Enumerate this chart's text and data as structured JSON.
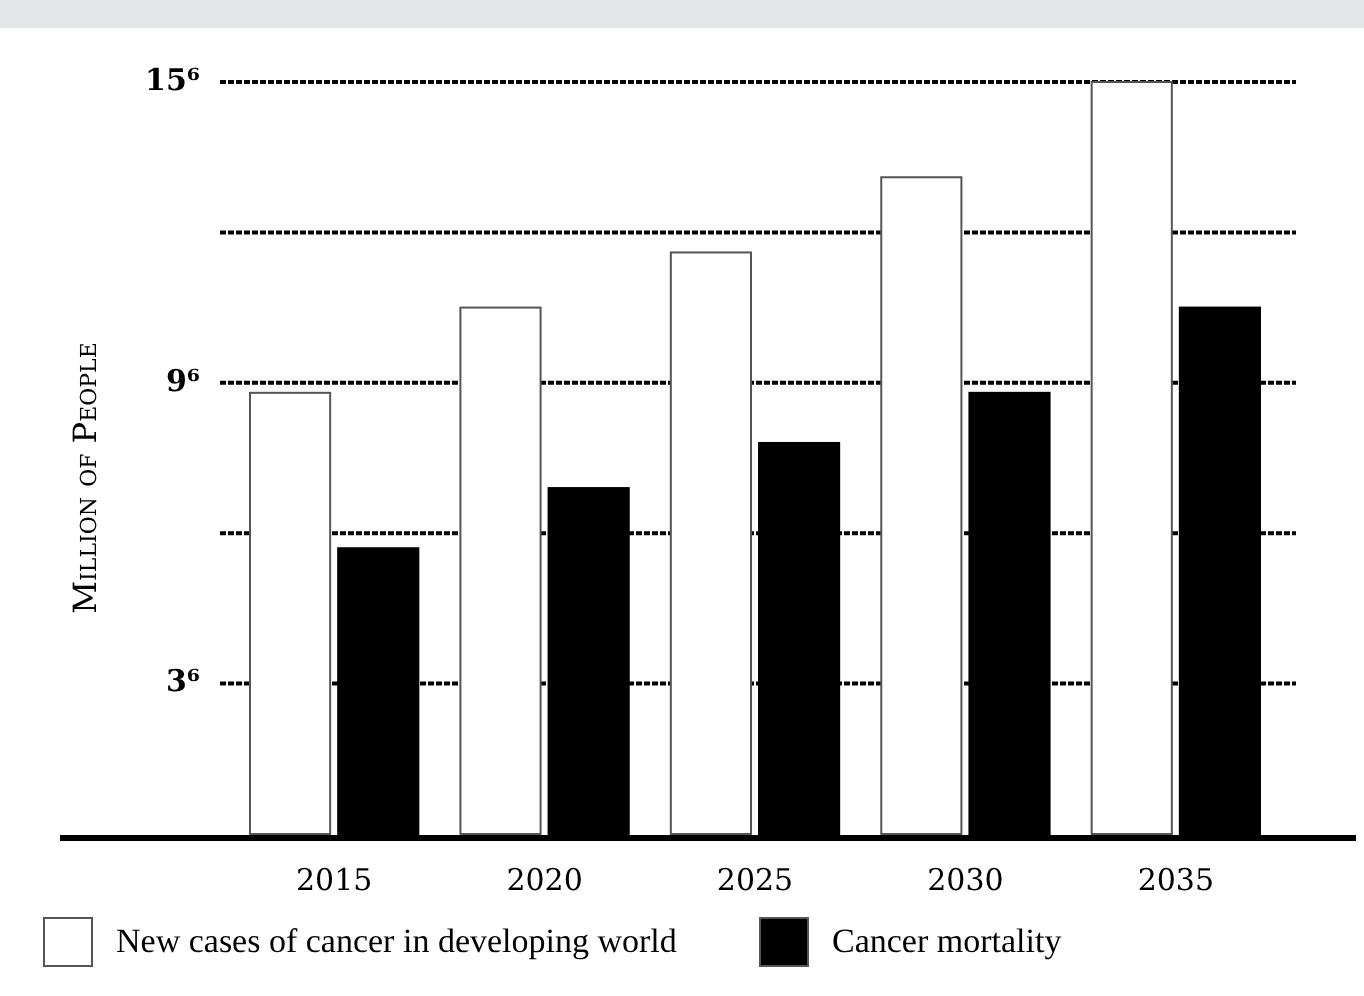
{
  "chart_data": {
    "type": "bar",
    "ylabel": "Million of People",
    "categories": [
      "2015",
      "2020",
      "2025",
      "2030",
      "2035"
    ],
    "series": [
      {
        "name": "New cases of cancer in developing world",
        "color": "#ffffff",
        "values": [
          8.8,
          10.5,
          11.6,
          13.1,
          15.0
        ]
      },
      {
        "name": "Cancer mortality",
        "color": "#000000",
        "values": [
          5.7,
          6.9,
          7.8,
          8.8,
          10.5
        ]
      }
    ],
    "ylim": [
      0,
      15
    ],
    "yticks": [
      {
        "value": 3,
        "label": "3⁶"
      },
      {
        "value": 6,
        "label": null
      },
      {
        "value": 9,
        "label": "9⁶"
      },
      {
        "value": 12,
        "label": null
      },
      {
        "value": 15,
        "label": "15⁶"
      }
    ],
    "grid": "y",
    "line_style": "dashed",
    "legend": "bottom"
  }
}
